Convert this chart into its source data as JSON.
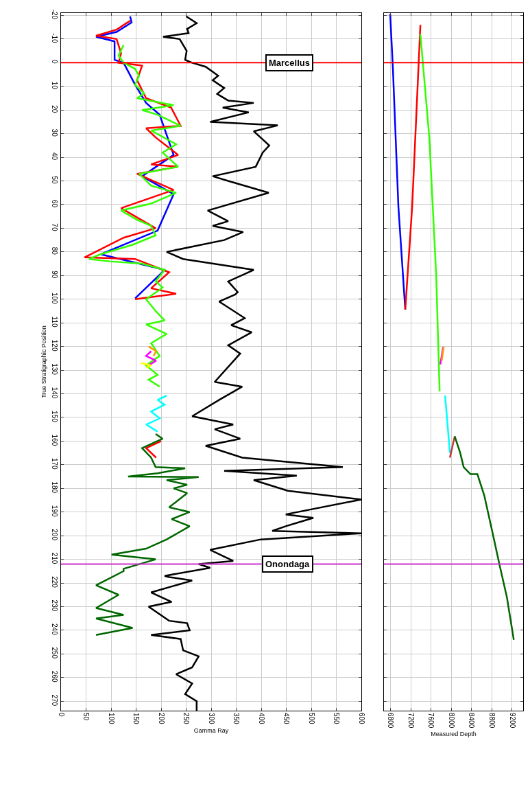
{
  "chart_data": [
    {
      "type": "line",
      "xlabel": "Gamma Ray",
      "ylabel": "True Stratigraphic Position",
      "xlim": [
        0,
        600
      ],
      "xticks": [
        0,
        50,
        100,
        150,
        200,
        250,
        300,
        350,
        400,
        450,
        500,
        550,
        600
      ],
      "ylim": [
        274,
        -21
      ],
      "yticks": [
        -20,
        -10,
        0,
        10,
        20,
        30,
        40,
        50,
        60,
        70,
        80,
        90,
        100,
        110,
        120,
        130,
        140,
        150,
        160,
        170,
        180,
        190,
        200,
        210,
        220,
        230,
        240,
        250,
        260,
        270
      ],
      "grid": true,
      "marker": "none",
      "line_style": "solid",
      "ref_lines": [
        {
          "axis": "y",
          "value": 0,
          "label": "Marcellus",
          "color": "#ff0000"
        },
        {
          "axis": "y",
          "value": 212,
          "label": "Onondaga",
          "color": "#cc33cc"
        }
      ],
      "series": [
        {
          "color": "#000000",
          "x": [
            250,
            271,
            252,
            255,
            204,
            237,
            251,
            248,
            262,
            289,
            314,
            303,
            326,
            312,
            334,
            385,
            323,
            375,
            298,
            433,
            385,
            416,
            403,
            389,
            303,
            334,
            415,
            293,
            334,
            303,
            364,
            326,
            211,
            244,
            385,
            334,
            353,
            348,
            316,
            367,
            340,
            381,
            334,
            358,
            307,
            362,
            316,
            262,
            344,
            307,
            358,
            289,
            362,
            563,
            326,
            471,
            385,
            453,
            600,
            449,
            504,
            449,
            422,
            600,
            399,
            298,
            344,
            275,
            298,
            207,
            216,
            262,
            180,
            221,
            175,
            216,
            252,
            257,
            180,
            239,
            244,
            275,
            262,
            230,
            262,
            248,
            271,
            271
          ],
          "values": [
            -19.6,
            -16.7,
            -14.3,
            -12.5,
            -11,
            -10,
            -5,
            -1.2,
            0,
            1.7,
            5.5,
            7.4,
            10.7,
            13.2,
            16,
            17,
            19,
            21,
            25,
            26.5,
            29,
            35,
            38,
            44,
            48,
            50,
            55,
            62.5,
            67,
            69,
            71.6,
            75,
            80,
            83,
            87.6,
            92.5,
            97,
            98,
            101,
            108,
            111,
            114,
            119.5,
            123,
            135,
            137,
            142.6,
            149.5,
            153,
            155,
            159,
            162,
            167,
            171,
            172.6,
            174.6,
            176.5,
            181,
            184.7,
            191,
            192.5,
            196,
            198,
            199,
            201.6,
            206,
            210.7,
            212,
            213.6,
            217,
            217.5,
            219,
            224,
            228,
            230,
            236,
            237,
            240,
            242,
            243.7,
            248.5,
            251,
            255.7,
            258.6,
            262.5,
            267,
            270,
            274
          ]
        },
        {
          "color": "#0000ff",
          "x": [
            138,
            141,
            111,
            70,
            107,
            107,
            125,
            148,
            170,
            197,
            225,
            162,
            225,
            193,
            79,
            207,
            148
          ],
          "values": [
            -19.6,
            -17,
            -13,
            -11,
            -9,
            -1.2,
            0,
            9.3,
            17,
            22,
            39,
            48,
            55.6,
            71,
            81,
            87.6,
            99.7
          ]
        },
        {
          "color": "#ff0000",
          "x": [
            138,
            111,
            70,
            111,
            120,
            115,
            162,
            152,
            170,
            220,
            239,
            170,
            189,
            234,
            180,
            234,
            152,
            225,
            120,
            189,
            125,
            47,
            148,
            216,
            180,
            230,
            148
          ],
          "values": [
            -17.7,
            -14,
            -11.4,
            -10,
            -4,
            0,
            1.2,
            7.4,
            15,
            19,
            26.7,
            27.7,
            31.6,
            39,
            43,
            44,
            47,
            53.8,
            61.5,
            70,
            74,
            82.3,
            83,
            88.6,
            95.4,
            97.7,
            100
          ]
        },
        {
          "color": "#33ff00",
          "x": [
            125,
            115,
            125,
            148,
            156,
            148,
            166,
            152,
            225,
            162,
            193,
            239,
            180,
            230,
            203,
            234,
            156,
            180,
            230,
            180,
            120,
            152,
            180,
            189,
            143,
            79,
            56,
            97,
            162,
            207,
            189,
            203,
            197,
            170,
            189,
            207,
            170,
            211,
            180,
            197,
            170,
            193,
            175,
            197
          ],
          "values": [
            -7.5,
            -3,
            0,
            2.6,
            5.5,
            9.3,
            13,
            15,
            18,
            20,
            22,
            26.7,
            28.7,
            34.5,
            38,
            44,
            47,
            52,
            55,
            59.6,
            62.5,
            66.4,
            69,
            73,
            77,
            81,
            83,
            84,
            85,
            87.6,
            92.5,
            95,
            96,
            100,
            105,
            109,
            110.7,
            114.7,
            118.6,
            124,
            128,
            132,
            134,
            137
          ]
        },
        {
          "color": "#ff9900",
          "x": [
            175,
            190,
            185
          ],
          "values": [
            120,
            122,
            124
          ]
        },
        {
          "color": "#ff00ff",
          "x": [
            180,
            170,
            190,
            175
          ],
          "values": [
            122,
            124,
            126,
            128
          ]
        },
        {
          "color": "#ffff00",
          "x": [
            160,
            180,
            170
          ],
          "values": [
            127,
            128,
            129
          ]
        },
        {
          "color": "#00ffff",
          "x": [
            211,
            193,
            207,
            180,
            197,
            170,
            193
          ],
          "values": [
            140.8,
            142.6,
            144.6,
            147.5,
            150.4,
            153,
            156
          ]
        },
        {
          "color": "#ff0000",
          "x": [
            200,
            170,
            190
          ],
          "values": [
            160,
            163,
            167
          ]
        },
        {
          "color": "#006600",
          "x": [
            189,
            203,
            162,
            180,
            189,
            248,
            193,
            134,
            275,
            211,
            252,
            225,
            252,
            216,
            257,
            221,
            257,
            211,
            170,
            101,
            189,
            125,
            125,
            70,
            115,
            70,
            125,
            70,
            143,
            70
          ],
          "values": [
            157,
            159,
            163,
            167,
            171,
            171.5,
            173.6,
            175,
            175.2,
            176.5,
            178.5,
            180,
            182,
            188,
            190,
            193,
            196,
            201.6,
            205.5,
            208,
            210,
            214,
            215,
            221,
            225,
            230.6,
            233.5,
            235,
            239,
            242
          ]
        }
      ]
    },
    {
      "type": "line",
      "xlabel": "Measured Depth",
      "xlim": [
        6670,
        9420
      ],
      "xticks": [
        6800,
        7200,
        7600,
        8000,
        8400,
        8800,
        9200
      ],
      "ylim": [
        274,
        -21
      ],
      "yticks": [
        -20,
        -10,
        0,
        10,
        20,
        30,
        40,
        50,
        60,
        70,
        80,
        90,
        100,
        110,
        120,
        130,
        140,
        150,
        160,
        170,
        180,
        190,
        200,
        210,
        220,
        230,
        240,
        250,
        260,
        270
      ],
      "tick_labels": "x",
      "grid": true,
      "marker": "none",
      "line_style": "solid",
      "ref_lines": [
        {
          "axis": "y",
          "value": 0,
          "color": "#ff0000"
        },
        {
          "axis": "y",
          "value": 212,
          "color": "#cc33cc"
        }
      ],
      "series": [
        {
          "color": "#0000ff",
          "x": [
            6793,
            6847,
            6955,
            7091
          ],
          "values": [
            -20.6,
            2.6,
            60.8,
            104.4
          ]
        },
        {
          "color": "#ff0000",
          "x": [
            7091,
            7227,
            7390
          ],
          "values": [
            104.4,
            61,
            -16
          ]
        },
        {
          "color": "#33ff00",
          "x": [
            7390,
            7566,
            7702,
            7770
          ],
          "values": [
            -12,
            31.7,
            89.8,
            139
          ]
        },
        {
          "color": "#ff00ff",
          "x": [
            7784,
            7838
          ],
          "values": [
            127.6,
            120.3
          ]
        },
        {
          "color": "#ff9900",
          "x": [
            7811,
            7851
          ],
          "values": [
            126,
            120
          ]
        },
        {
          "color": "#00ffff",
          "x": [
            7878,
            7973
          ],
          "values": [
            140.7,
            165
          ]
        },
        {
          "color": "#cc3333",
          "x": [
            7973,
            8068
          ],
          "values": [
            167,
            158
          ]
        },
        {
          "color": "#006600",
          "x": [
            8068,
            8177,
            8245,
            8380,
            8516,
            8652,
            8828,
            8950,
            9099,
            9235
          ],
          "values": [
            158,
            165,
            171,
            174,
            174,
            183,
            200,
            212,
            226,
            244
          ]
        }
      ]
    }
  ]
}
